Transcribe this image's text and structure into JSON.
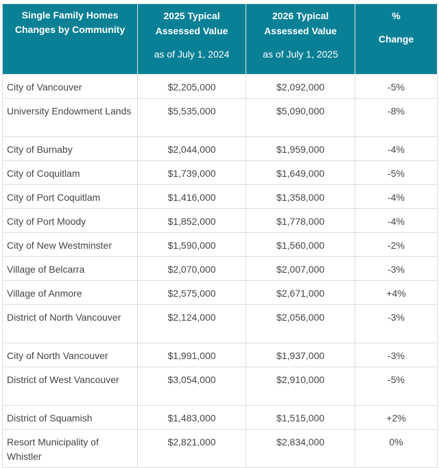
{
  "header": {
    "community": "Single Family Homes Changes by Community",
    "col2_title": "2025 Typical Assessed Value",
    "col2_sub": "as of July 1, 2024",
    "col3_title": "2026 Typical Assessed Value",
    "col3_sub": "as of July 1, 2025",
    "col4_symbol": "%",
    "col4_title": "Change"
  },
  "rows": [
    {
      "community": "City of Vancouver",
      "v2025": "$2,205,000",
      "v2026": "$2,092,000",
      "change": "-5%"
    },
    {
      "community": "University Endowment Lands",
      "v2025": "$5,535,000",
      "v2026": "$5,090,000",
      "change": "-8%"
    },
    {
      "community": "City of Burnaby",
      "v2025": "$2,044,000",
      "v2026": "$1,959,000",
      "change": "-4%"
    },
    {
      "community": "City of Coquitlam",
      "v2025": "$1,739,000",
      "v2026": "$1,649,000",
      "change": "-5%"
    },
    {
      "community": "City of Port Coquitlam",
      "v2025": "$1,416,000",
      "v2026": "$1,358,000",
      "change": "-4%"
    },
    {
      "community": "City of Port Moody",
      "v2025": "$1,852,000",
      "v2026": "$1,778,000",
      "change": "-4%"
    },
    {
      "community": "City of New Westminster",
      "v2025": "$1,590,000",
      "v2026": "$1,560,000",
      "change": "-2%"
    },
    {
      "community": "Village of Belcarra",
      "v2025": "$2,070,000",
      "v2026": "$2,007,000",
      "change": "-3%"
    },
    {
      "community": "Village of Anmore",
      "v2025": "$2,575,000",
      "v2026": "$2,671,000",
      "change": "+4%"
    },
    {
      "community": "District of North Vancouver",
      "v2025": "$2,124,000",
      "v2026": "$2,056,000",
      "change": "-3%"
    },
    {
      "community": "City of North Vancouver",
      "v2025": "$1,991,000",
      "v2026": "$1,937,000",
      "change": "-3%"
    },
    {
      "community": "District of West Vancouver",
      "v2025": "$3,054,000",
      "v2026": "$2,910,000",
      "change": "-5%"
    },
    {
      "community": "District of Squamish",
      "v2025": "$1,483,000",
      "v2026": "$1,515,000",
      "change": "+2%"
    },
    {
      "community": "Resort Municipality of Whistler",
      "v2025": "$2,821,000",
      "v2026": "$2,834,000",
      "change": "0%"
    }
  ]
}
